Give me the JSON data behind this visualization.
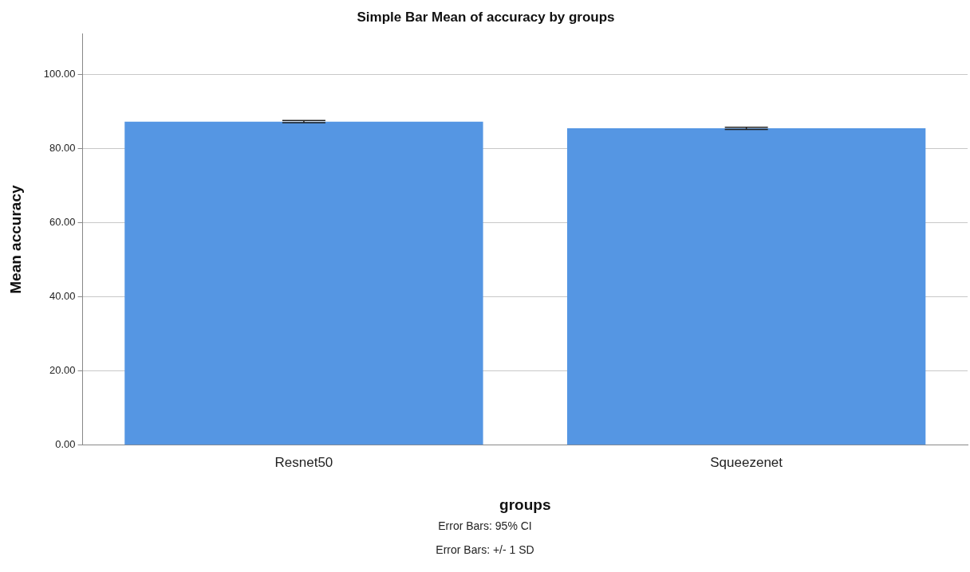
{
  "chart_data": {
    "type": "bar",
    "title": "Simple Bar Mean of accuracy by groups",
    "xlabel": "groups",
    "ylabel": "Mean accuracy",
    "categories": [
      "Resnet50",
      "Squeezenet"
    ],
    "values": [
      87.3,
      85.5
    ],
    "errors": [
      0.3,
      0.3
    ],
    "color": "#5596e3",
    "ylim": [
      0,
      111
    ],
    "yticks": [
      {
        "value": 0,
        "label": "0.00"
      },
      {
        "value": 20,
        "label": "20.00"
      },
      {
        "value": 40,
        "label": "40.00"
      },
      {
        "value": 60,
        "label": "60.00"
      },
      {
        "value": 80,
        "label": "80.00"
      },
      {
        "value": 100,
        "label": "100.00"
      }
    ],
    "grid": "y",
    "annotations": [
      "Error Bars: 95% CI",
      "Error Bars: +/- 1 SD"
    ]
  }
}
